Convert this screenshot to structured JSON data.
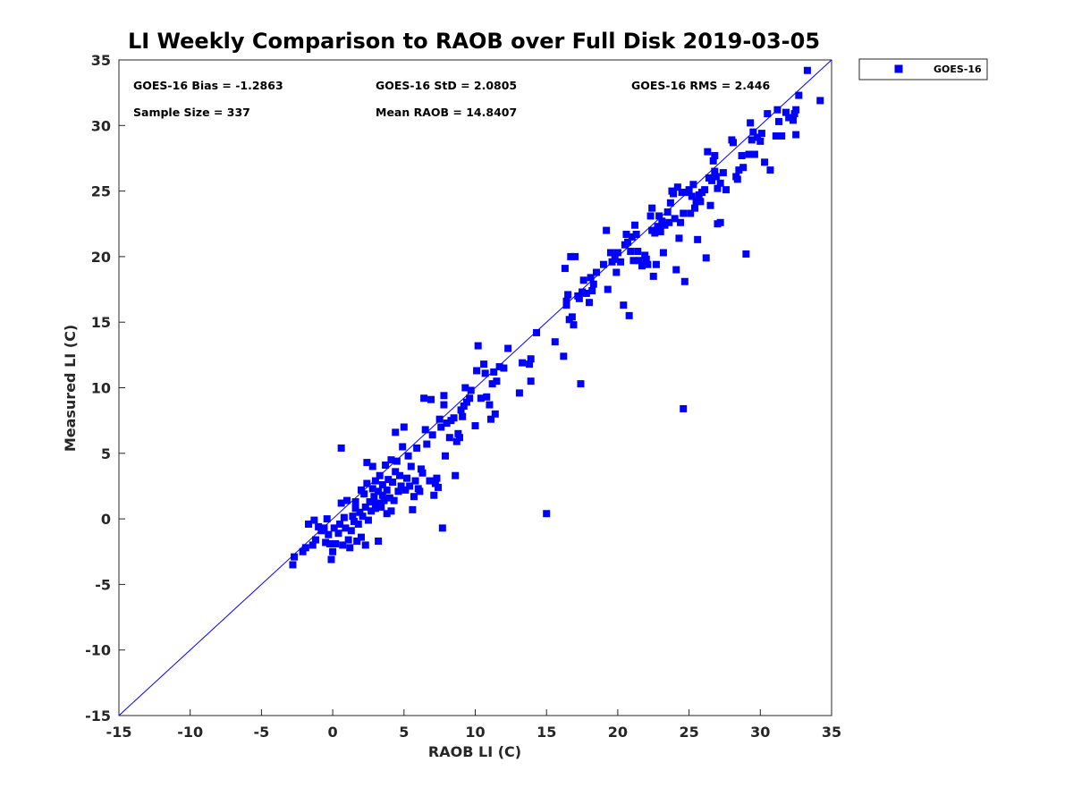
{
  "chart_data": {
    "type": "scatter",
    "title": "LI Weekly Comparison to RAOB over Full Disk 2019-03-05",
    "xlabel": "RAOB LI (C)",
    "ylabel": "Measured LI (C)",
    "xlim": [
      -15,
      35
    ],
    "ylim": [
      -15,
      35
    ],
    "xticks": [
      "-15",
      "-10",
      "-5",
      "0",
      "5",
      "10",
      "15",
      "20",
      "25",
      "30",
      "35"
    ],
    "yticks": [
      "-15",
      "-10",
      "-5",
      "0",
      "5",
      "10",
      "15",
      "20",
      "25",
      "30",
      "35"
    ],
    "grid": false,
    "legend_position": "outside-top-right",
    "reference_line": {
      "label": "1:1 line",
      "from": [
        -15,
        -15
      ],
      "to": [
        35,
        35
      ]
    },
    "marker_color": "#0000ff",
    "stats": {
      "bias": "GOES-16 Bias = -1.2863",
      "std": "GOES-16 StD = 2.0805",
      "rms": "GOES-16 RMS = 2.446",
      "sample_size": "Sample Size = 337",
      "mean_raob": "Mean RAOB = 14.8407"
    },
    "series": [
      {
        "name": "GOES-16",
        "points": [
          [
            -2.8,
            -3.5
          ],
          [
            -2.7,
            -2.9
          ],
          [
            -2.1,
            -2.5
          ],
          [
            -1.9,
            -2.2
          ],
          [
            -1.7,
            -0.4
          ],
          [
            -1.4,
            -2
          ],
          [
            -1.3,
            -0.1
          ],
          [
            -1.2,
            -1.6
          ],
          [
            -1,
            -0.6
          ],
          [
            -0.8,
            -0.9
          ],
          [
            -0.6,
            -0.7
          ],
          [
            -0.5,
            -1.8
          ],
          [
            -0.4,
            0
          ],
          [
            -0.3,
            -1.2
          ],
          [
            -0.2,
            -1.9
          ],
          [
            -0.1,
            -3.1
          ],
          [
            0,
            -2.5
          ],
          [
            0.1,
            -0.7
          ],
          [
            0.2,
            -1.9
          ],
          [
            0.4,
            -1.1
          ],
          [
            0.5,
            -0.4
          ],
          [
            0.6,
            1.2
          ],
          [
            0.6,
            5.4
          ],
          [
            0.7,
            -2
          ],
          [
            0.8,
            0.1
          ],
          [
            0.9,
            -0.7
          ],
          [
            1,
            1.4
          ],
          [
            1.1,
            -1.6
          ],
          [
            1.2,
            -2.2
          ],
          [
            1.3,
            -0.9
          ],
          [
            1.4,
            0.2
          ],
          [
            1.5,
            -0.2
          ],
          [
            1.6,
            0.8
          ],
          [
            1.6,
            1.3
          ],
          [
            1.7,
            -1.7
          ],
          [
            1.8,
            -0.4
          ],
          [
            1.9,
            0.5
          ],
          [
            2,
            2.2
          ],
          [
            2,
            -1.4
          ],
          [
            2.1,
            0.2
          ],
          [
            2.2,
            1.9
          ],
          [
            2.3,
            -2
          ],
          [
            2.3,
            0.9
          ],
          [
            2.4,
            2.7
          ],
          [
            2.4,
            4.3
          ],
          [
            2.5,
            -0.1
          ],
          [
            2.6,
            1.3
          ],
          [
            2.7,
            0.6
          ],
          [
            2.8,
            2.3
          ],
          [
            2.8,
            4
          ],
          [
            2.9,
            1.7
          ],
          [
            3,
            0.8
          ],
          [
            3,
            2.9
          ],
          [
            3.1,
            1.2
          ],
          [
            3.2,
            -1.7
          ],
          [
            3.2,
            2.1
          ],
          [
            3.3,
            3.3
          ],
          [
            3.4,
            0.9
          ],
          [
            3.5,
            2.6
          ],
          [
            3.5,
            1.8
          ],
          [
            3.6,
            1.4
          ],
          [
            3.7,
            4.1
          ],
          [
            3.8,
            0.4
          ],
          [
            3.8,
            2.2
          ],
          [
            3.9,
            3
          ],
          [
            4,
            1.6
          ],
          [
            4.1,
            0.6
          ],
          [
            4.1,
            4.5
          ],
          [
            4.2,
            2.8
          ],
          [
            4.3,
            1.4
          ],
          [
            4.4,
            6.6
          ],
          [
            4.4,
            3.6
          ],
          [
            4.5,
            4.4
          ],
          [
            4.6,
            2.1
          ],
          [
            4.7,
            3.3
          ],
          [
            4.8,
            2.5
          ],
          [
            4.9,
            5.5
          ],
          [
            5,
            7
          ],
          [
            5.1,
            2.2
          ],
          [
            5.2,
            3.1
          ],
          [
            5.3,
            4.8
          ],
          [
            5.4,
            2.5
          ],
          [
            5.5,
            4
          ],
          [
            5.6,
            0.7
          ],
          [
            5.7,
            1.7
          ],
          [
            5.8,
            2.9
          ],
          [
            5.9,
            5.4
          ],
          [
            6,
            2.3
          ],
          [
            6.1,
            2.1
          ],
          [
            6.2,
            3.8
          ],
          [
            6.3,
            3.5
          ],
          [
            6.4,
            9.2
          ],
          [
            6.5,
            6.8
          ],
          [
            6.6,
            5.7
          ],
          [
            6.8,
            2.9
          ],
          [
            6.9,
            9.1
          ],
          [
            7,
            6.4
          ],
          [
            7.1,
            1.8
          ],
          [
            7.2,
            2.7
          ],
          [
            7.3,
            3.1
          ],
          [
            7.4,
            2.4
          ],
          [
            7.5,
            7.6
          ],
          [
            7.6,
            7
          ],
          [
            7.7,
            -0.7
          ],
          [
            7.8,
            9.4
          ],
          [
            7.8,
            8.7
          ],
          [
            7.9,
            4.8
          ],
          [
            8,
            7.3
          ],
          [
            8.2,
            6.2
          ],
          [
            8.3,
            7.5
          ],
          [
            8.5,
            7.7
          ],
          [
            8.6,
            3.3
          ],
          [
            8.7,
            5.9
          ],
          [
            8.8,
            6.5
          ],
          [
            8.9,
            6.2
          ],
          [
            9,
            8.3
          ],
          [
            9.1,
            7.8
          ],
          [
            9.2,
            8.6
          ],
          [
            9.3,
            10
          ],
          [
            9.4,
            8.9
          ],
          [
            9.6,
            9.2
          ],
          [
            9.7,
            9.8
          ],
          [
            10,
            7.1
          ],
          [
            10.1,
            11.3
          ],
          [
            10.2,
            13.2
          ],
          [
            10.4,
            9.2
          ],
          [
            10.6,
            11.8
          ],
          [
            10.7,
            11.1
          ],
          [
            10.8,
            9.3
          ],
          [
            11,
            8.7
          ],
          [
            11.1,
            7.6
          ],
          [
            11.2,
            10.3
          ],
          [
            11.3,
            11.2
          ],
          [
            11.4,
            8
          ],
          [
            11.5,
            10.5
          ],
          [
            11.7,
            11.6
          ],
          [
            12,
            11.5
          ],
          [
            12.3,
            13
          ],
          [
            13.1,
            9.6
          ],
          [
            13.3,
            11.9
          ],
          [
            13.8,
            11.8
          ],
          [
            13.9,
            12.2
          ],
          [
            13.9,
            10.5
          ],
          [
            14.3,
            14.2
          ],
          [
            15,
            0.4
          ],
          [
            15.6,
            13.5
          ],
          [
            16.2,
            12.4
          ],
          [
            16.3,
            19.1
          ],
          [
            16.4,
            16.6
          ],
          [
            16.4,
            16.3
          ],
          [
            16.5,
            17.1
          ],
          [
            16.6,
            15.2
          ],
          [
            16.7,
            20
          ],
          [
            16.8,
            15.4
          ],
          [
            16.9,
            14.8
          ],
          [
            17,
            20
          ],
          [
            17.2,
            17
          ],
          [
            17.3,
            16.8
          ],
          [
            17.4,
            10.3
          ],
          [
            17.5,
            17.3
          ],
          [
            17.6,
            18.2
          ],
          [
            17.8,
            17.2
          ],
          [
            18,
            16.5
          ],
          [
            18.1,
            18.4
          ],
          [
            18.2,
            17.4
          ],
          [
            18.3,
            17.9
          ],
          [
            18.5,
            18.8
          ],
          [
            19,
            19.4
          ],
          [
            19.2,
            22
          ],
          [
            19.3,
            17.5
          ],
          [
            19.5,
            20.3
          ],
          [
            19.6,
            19.6
          ],
          [
            19.8,
            19.8
          ],
          [
            19.9,
            18.8
          ],
          [
            20,
            20.3
          ],
          [
            20.2,
            19.6
          ],
          [
            20.4,
            16.3
          ],
          [
            20.5,
            20.9
          ],
          [
            20.6,
            21.7
          ],
          [
            20.7,
            21.1
          ],
          [
            20.8,
            15.5
          ],
          [
            20.9,
            20.4
          ],
          [
            21,
            21.5
          ],
          [
            21.1,
            19.7
          ],
          [
            21.2,
            22.4
          ],
          [
            21.3,
            21.7
          ],
          [
            21.4,
            20.4
          ],
          [
            21.5,
            19.7
          ],
          [
            21.7,
            19.3
          ],
          [
            21.9,
            20.1
          ],
          [
            22,
            19.8
          ],
          [
            22.1,
            19.4
          ],
          [
            22.3,
            23.1
          ],
          [
            22.4,
            22
          ],
          [
            22.4,
            23.7
          ],
          [
            22.5,
            18.5
          ],
          [
            22.6,
            21.8
          ],
          [
            22.7,
            19.4
          ],
          [
            22.8,
            22.3
          ],
          [
            22.9,
            23.1
          ],
          [
            23,
            21.9
          ],
          [
            23.1,
            22.7
          ],
          [
            23.2,
            20.3
          ],
          [
            23.3,
            22.4
          ],
          [
            23.5,
            23.4
          ],
          [
            23.6,
            22.6
          ],
          [
            23.7,
            24.1
          ],
          [
            23.8,
            25
          ],
          [
            23.9,
            24.8
          ],
          [
            24,
            22.9
          ],
          [
            24.1,
            19
          ],
          [
            24.2,
            25.3
          ],
          [
            24.3,
            21.4
          ],
          [
            24.4,
            22.6
          ],
          [
            24.5,
            24.9
          ],
          [
            24.6,
            23.3
          ],
          [
            24.6,
            8.4
          ],
          [
            24.7,
            18.1
          ],
          [
            24.8,
            24.9
          ],
          [
            25,
            25.1
          ],
          [
            25.1,
            23.3
          ],
          [
            25.2,
            24.6
          ],
          [
            25.3,
            25.5
          ],
          [
            25.4,
            23.7
          ],
          [
            25.5,
            24.2
          ],
          [
            25.6,
            21.3
          ],
          [
            25.7,
            24.7
          ],
          [
            25.8,
            24.2
          ],
          [
            25.9,
            24.9
          ],
          [
            26.1,
            25.1
          ],
          [
            26.2,
            19.9
          ],
          [
            26.3,
            28
          ],
          [
            26.4,
            26
          ],
          [
            26.5,
            23.9
          ],
          [
            26.6,
            25.8
          ],
          [
            26.7,
            27.3
          ],
          [
            26.8,
            27.7
          ],
          [
            26.8,
            26.5
          ],
          [
            26.9,
            26.1
          ],
          [
            27,
            22.5
          ],
          [
            27,
            25.2
          ],
          [
            27.2,
            25.6
          ],
          [
            27.2,
            22.6
          ],
          [
            27.4,
            26.4
          ],
          [
            27.6,
            25.1
          ],
          [
            28,
            28.9
          ],
          [
            28.1,
            28.7
          ],
          [
            28.3,
            26.1
          ],
          [
            28.4,
            25.9
          ],
          [
            28.5,
            26.6
          ],
          [
            28.7,
            27.7
          ],
          [
            28.8,
            26.8
          ],
          [
            29,
            20.2
          ],
          [
            29.2,
            27.8
          ],
          [
            29.3,
            30.2
          ],
          [
            29.4,
            28.9
          ],
          [
            29.5,
            29.5
          ],
          [
            29.6,
            27.8
          ],
          [
            29.8,
            29.1
          ],
          [
            30,
            28.8
          ],
          [
            30.1,
            29.4
          ],
          [
            30.3,
            27.2
          ],
          [
            30.5,
            30.9
          ],
          [
            30.7,
            26.6
          ],
          [
            31.1,
            29.2
          ],
          [
            31.2,
            31.2
          ],
          [
            31.3,
            30.3
          ],
          [
            31.5,
            29.2
          ],
          [
            31.8,
            31
          ],
          [
            32,
            30.6
          ],
          [
            32.3,
            30.4
          ],
          [
            32.4,
            30.9
          ],
          [
            32.5,
            31.2
          ],
          [
            32.5,
            29.3
          ],
          [
            32.7,
            32.3
          ],
          [
            33.3,
            34.2
          ],
          [
            34.2,
            31.9
          ]
        ]
      }
    ]
  },
  "legend": {
    "entries": [
      "GOES-16"
    ]
  }
}
